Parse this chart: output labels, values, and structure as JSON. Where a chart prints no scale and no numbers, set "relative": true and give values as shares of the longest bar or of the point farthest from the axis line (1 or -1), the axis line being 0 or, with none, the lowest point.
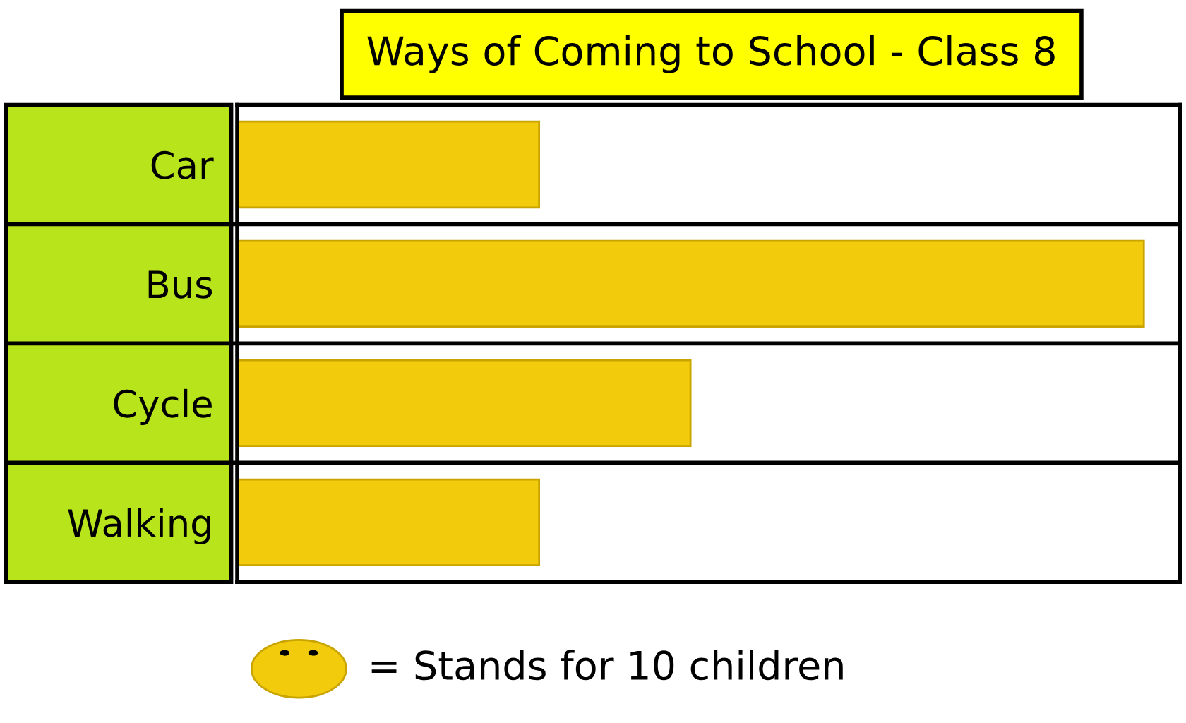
{
  "chart_data": {
    "type": "bar",
    "orientation": "horizontal",
    "relative": true,
    "title": "Ways of Coming to School - Class 8",
    "categories": [
      "Car",
      "Bus",
      "Cycle",
      "Walking"
    ],
    "values": [
      0.333,
      1,
      0.5,
      0.333
    ],
    "color": "#f2cc0c",
    "grid": false,
    "legend": false,
    "annotations": [
      "= Stands for 10 children"
    ]
  }
}
